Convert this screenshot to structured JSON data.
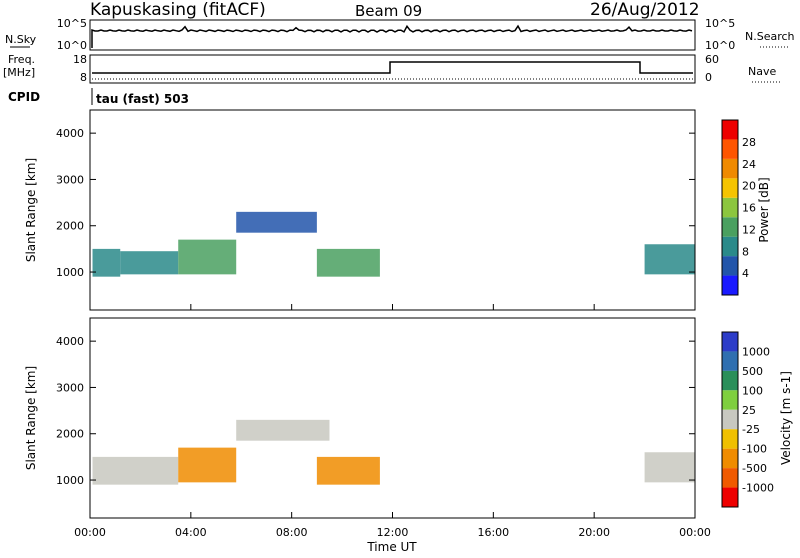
{
  "header": {
    "station": "Kapuskasing (fitACF)",
    "beam": "Beam 09",
    "date": "26/Aug/2012"
  },
  "noise_panel": {
    "left_label": "N.Sky",
    "left_ticks": [
      "10^5",
      "10^0"
    ],
    "right_label": "N.Search",
    "right_ticks": [
      "10^5",
      "10^0"
    ]
  },
  "freq_panel": {
    "left_label_line1": "Freq.",
    "left_label_line2": "[MHz]",
    "left_ticks": [
      "18",
      "8"
    ],
    "right_label": "Nave",
    "right_ticks": [
      "60",
      "0"
    ],
    "cpid_label": "CPID"
  },
  "cpid_text": "tau (fast) 503",
  "chart_data": [
    {
      "type": "heatmap",
      "title": "",
      "xlabel": "",
      "ylabel": "Slant Range [km]",
      "xlim": [
        0,
        24
      ],
      "ylim": [
        180,
        4500
      ],
      "y_ticks": [
        "1000",
        "2000",
        "3000",
        "4000"
      ],
      "colorbar_label": "Power [dB]",
      "colorbar_ticks": [
        "4",
        "8",
        "12",
        "16",
        "20",
        "24",
        "28"
      ],
      "colorbar_range": [
        0,
        32
      ],
      "regions": [
        {
          "t": [
            0.1,
            1.2
          ],
          "range": [
            900,
            1500
          ],
          "value": 10
        },
        {
          "t": [
            1.2,
            3.5
          ],
          "range": [
            950,
            1450
          ],
          "value": 9
        },
        {
          "t": [
            3.5,
            5.8
          ],
          "range": [
            950,
            1700
          ],
          "value": 12
        },
        {
          "t": [
            5.8,
            9.0
          ],
          "range": [
            1850,
            2300
          ],
          "value": 4
        },
        {
          "t": [
            9.0,
            11.5
          ],
          "range": [
            900,
            1500
          ],
          "value": 14
        },
        {
          "t": [
            22.0,
            24.0
          ],
          "range": [
            950,
            1600
          ],
          "value": 8
        }
      ]
    },
    {
      "type": "heatmap",
      "title": "",
      "xlabel": "Time UT",
      "ylabel": "Slant Range [km]",
      "xlim": [
        0,
        24
      ],
      "ylim": [
        180,
        4500
      ],
      "x_ticks": [
        "00:00",
        "04:00",
        "08:00",
        "12:00",
        "16:00",
        "20:00",
        "00:00"
      ],
      "y_ticks": [
        "1000",
        "2000",
        "3000",
        "4000"
      ],
      "colorbar_label": "Velocity [m s-1]",
      "colorbar_ticks": [
        "1000",
        "500",
        "100",
        "25",
        "-25",
        "-100",
        "-500",
        "-1000"
      ],
      "regions": [
        {
          "t": [
            0.1,
            3.5
          ],
          "range": [
            900,
            1500
          ],
          "value": 0
        },
        {
          "t": [
            3.5,
            5.8
          ],
          "range": [
            950,
            1700
          ],
          "value": -200
        },
        {
          "t": [
            5.8,
            9.5
          ],
          "range": [
            1850,
            2300
          ],
          "value": 0
        },
        {
          "t": [
            9.0,
            11.5
          ],
          "range": [
            900,
            1500
          ],
          "value": -300
        },
        {
          "t": [
            22.0,
            24.0
          ],
          "range": [
            950,
            1600
          ],
          "value": 0
        }
      ]
    }
  ],
  "colors": {
    "power": [
      "#1a1aff",
      "#2255aa",
      "#2a8a8a",
      "#4aa060",
      "#8cc63f",
      "#f5c400",
      "#f08a00",
      "#ff5500",
      "#ee0000"
    ],
    "velocity": [
      "#2c3cc8",
      "#2f6fb0",
      "#2a8f5a",
      "#7fcf3f",
      "#c8c8c0",
      "#f0c000",
      "#f08c00",
      "#f05a00",
      "#ee0000"
    ]
  }
}
